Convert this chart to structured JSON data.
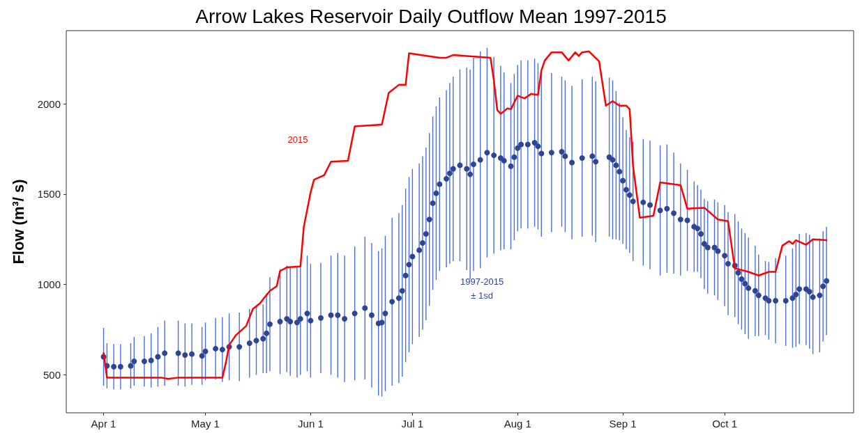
{
  "chart_data": {
    "type": "scatter",
    "title": "Arrow Lakes Reservoir Daily Outflow Mean 1997-2015",
    "ylabel": "Flow (m³/ s)",
    "xlim": [
      "--03-21",
      "--11-08"
    ],
    "xticks": [
      {
        "value": "--04-01",
        "label": "Apr 1"
      },
      {
        "value": "--05-01",
        "label": "May 1"
      },
      {
        "value": "--06-01",
        "label": "Jun 1"
      },
      {
        "value": "--07-01",
        "label": "Jul 1"
      },
      {
        "value": "--08-01",
        "label": "Aug 1"
      },
      {
        "value": "--09-01",
        "label": "Sep 1"
      },
      {
        "value": "--10-01",
        "label": "Oct 1"
      }
    ],
    "ylim": [
      290,
      2405
    ],
    "yticks": [
      500,
      1000,
      1500,
      2000
    ],
    "series": [
      {
        "name": "1997-2015\n± 1sd",
        "color": "#2e4591",
        "marker": "circle",
        "x": [
          "--04-01",
          "--04-02",
          "--04-04",
          "--04-06",
          "--04-09",
          "--04-10",
          "--04-13",
          "--04-15",
          "--04-17",
          "--04-19",
          "--04-23",
          "--04-25",
          "--04-27",
          "--04-30",
          "--05-01",
          "--05-04",
          "--05-06",
          "--05-08",
          "--05-11",
          "--05-14",
          "--05-16",
          "--05-18",
          "--05-19",
          "--05-20",
          "--05-23",
          "--05-25",
          "--05-26",
          "--05-28",
          "--05-29",
          "--05-31",
          "--06-01",
          "--06-04",
          "--06-07",
          "--06-09",
          "--06-11",
          "--06-14",
          "--06-17",
          "--06-19",
          "--06-21",
          "--06-22",
          "--06-23",
          "--06-25",
          "--06-27",
          "--06-28",
          "--06-29",
          "--06-30",
          "--07-01",
          "--07-03",
          "--07-04",
          "--07-05",
          "--07-06",
          "--07-07",
          "--07-08",
          "--07-09",
          "--07-11",
          "--07-12",
          "--07-13",
          "--07-15",
          "--07-17",
          "--07-18",
          "--07-19",
          "--07-21",
          "--07-23",
          "--07-25",
          "--07-27",
          "--07-28",
          "--07-30",
          "--07-31",
          "--08-01",
          "--08-02",
          "--08-04",
          "--08-06",
          "--08-07",
          "--08-08",
          "--08-11",
          "--08-14",
          "--08-15",
          "--08-17",
          "--08-20",
          "--08-23",
          "--08-24",
          "--08-28",
          "--08-29",
          "--08-30",
          "--08-31",
          "--09-01",
          "--09-02",
          "--09-03",
          "--09-04",
          "--09-07",
          "--09-09",
          "--09-12",
          "--09-14",
          "--09-16",
          "--09-18",
          "--09-20",
          "--09-22",
          "--09-23",
          "--09-24",
          "--09-25",
          "--09-26",
          "--09-28",
          "--09-29",
          "--10-01",
          "--10-02",
          "--10-04",
          "--10-05",
          "--10-06",
          "--10-07",
          "--10-08",
          "--10-10",
          "--10-11",
          "--10-13",
          "--10-14",
          "--10-16",
          "--10-19",
          "--10-21",
          "--10-22",
          "--10-23",
          "--10-25",
          "--10-26",
          "--10-27",
          "--10-29",
          "--10-30",
          "--10-31"
        ],
        "values": [
          600,
          550,
          545,
          545,
          550,
          575,
          575,
          580,
          600,
          620,
          620,
          610,
          615,
          605,
          630,
          645,
          640,
          655,
          655,
          675,
          690,
          700,
          730,
          780,
          795,
          810,
          795,
          790,
          810,
          840,
          800,
          815,
          830,
          830,
          810,
          840,
          870,
          830,
          785,
          790,
          840,
          905,
          925,
          965,
          1050,
          1110,
          1155,
          1190,
          1230,
          1280,
          1360,
          1450,
          1505,
          1555,
          1585,
          1615,
          1640,
          1660,
          1640,
          1610,
          1665,
          1690,
          1730,
          1715,
          1700,
          1685,
          1655,
          1705,
          1755,
          1775,
          1775,
          1785,
          1765,
          1725,
          1730,
          1735,
          1710,
          1675,
          1700,
          1710,
          1680,
          1705,
          1690,
          1660,
          1625,
          1575,
          1525,
          1495,
          1460,
          1455,
          1440,
          1410,
          1420,
          1395,
          1360,
          1355,
          1320,
          1310,
          1280,
          1225,
          1205,
          1205,
          1185,
          1160,
          1115,
          1105,
          1065,
          1030,
          1005,
          980,
          965,
          940,
          925,
          910,
          910,
          910,
          925,
          945,
          975,
          975,
          960,
          930,
          940,
          990,
          1020
        ],
        "errors": [
          160,
          125,
          125,
          125,
          125,
          135,
          140,
          150,
          165,
          180,
          180,
          175,
          170,
          160,
          160,
          170,
          180,
          185,
          190,
          190,
          190,
          190,
          220,
          260,
          290,
          295,
          300,
          305,
          310,
          320,
          315,
          305,
          330,
          345,
          350,
          370,
          395,
          400,
          400,
          410,
          430,
          465,
          470,
          475,
          480,
          485,
          485,
          480,
          480,
          478,
          478,
          480,
          480,
          480,
          490,
          500,
          510,
          530,
          560,
          580,
          590,
          600,
          580,
          545,
          510,
          490,
          460,
          460,
          460,
          465,
          465,
          465,
          460,
          460,
          440,
          415,
          420,
          425,
          435,
          440,
          445,
          440,
          440,
          410,
          380,
          350,
          330,
          320,
          330,
          350,
          355,
          360,
          355,
          335,
          310,
          280,
          250,
          240,
          245,
          250,
          255,
          265,
          270,
          280,
          285,
          285,
          285,
          280,
          280,
          280,
          250,
          225,
          205,
          215,
          235,
          250,
          275,
          290,
          305,
          310,
          315,
          315,
          315,
          305,
          300
        ]
      },
      {
        "type": "line",
        "name": "2015",
        "color": "#ff0000",
        "marker": "none",
        "line_style": "solid",
        "x": [
          "--04-01",
          "--04-02",
          "--04-18",
          "--04-20",
          "--04-23",
          "--05-06",
          "--05-07",
          "--05-08",
          "--05-10",
          "--05-13",
          "--05-15",
          "--05-17",
          "--05-20",
          "--05-22",
          "--05-23",
          "--05-25",
          "--05-29",
          "--05-30",
          "--06-01",
          "--06-02",
          "--06-05",
          "--06-07",
          "--06-12",
          "--06-14",
          "--06-22",
          "--06-24",
          "--06-27",
          "--06-29",
          "--06-30",
          "--07-09",
          "--07-11",
          "--07-13",
          "--07-24",
          "--07-25",
          "--07-26",
          "--07-27",
          "--07-29",
          "--07-30",
          "--08-01",
          "--08-03",
          "--08-05",
          "--08-07",
          "--08-08",
          "--08-09",
          "--08-11",
          "--08-14",
          "--08-16",
          "--08-18",
          "--08-19",
          "--08-20",
          "--08-22",
          "--08-25",
          "--08-27",
          "--08-29",
          "--08-31",
          "--09-02",
          "--09-03",
          "--09-04",
          "--09-06",
          "--09-10",
          "--09-12",
          "--09-18",
          "--09-20",
          "--09-25",
          "--09-29",
          "--10-02",
          "--10-04",
          "--10-08",
          "--10-11",
          "--10-14",
          "--10-16",
          "--10-18",
          "--10-20",
          "--10-21",
          "--10-22",
          "--10-25",
          "--10-27",
          "--10-31"
        ],
        "values": [
          620,
          485,
          485,
          478,
          485,
          485,
          565,
          665,
          720,
          770,
          865,
          895,
          965,
          990,
          1075,
          1095,
          1100,
          1320,
          1510,
          1580,
          1605,
          1680,
          1685,
          1875,
          1885,
          2060,
          2105,
          2105,
          2280,
          2255,
          2255,
          2270,
          2255,
          2130,
          1965,
          1945,
          1975,
          1970,
          2045,
          2030,
          2055,
          2050,
          2185,
          2240,
          2285,
          2285,
          2240,
          2285,
          2265,
          2285,
          2290,
          2235,
          1990,
          2015,
          1990,
          1990,
          1970,
          1655,
          1370,
          1380,
          1565,
          1550,
          1420,
          1425,
          1360,
          1350,
          1090,
          1070,
          1050,
          1070,
          1070,
          1215,
          1240,
          1225,
          1245,
          1220,
          1250,
          1245
        ]
      }
    ]
  }
}
